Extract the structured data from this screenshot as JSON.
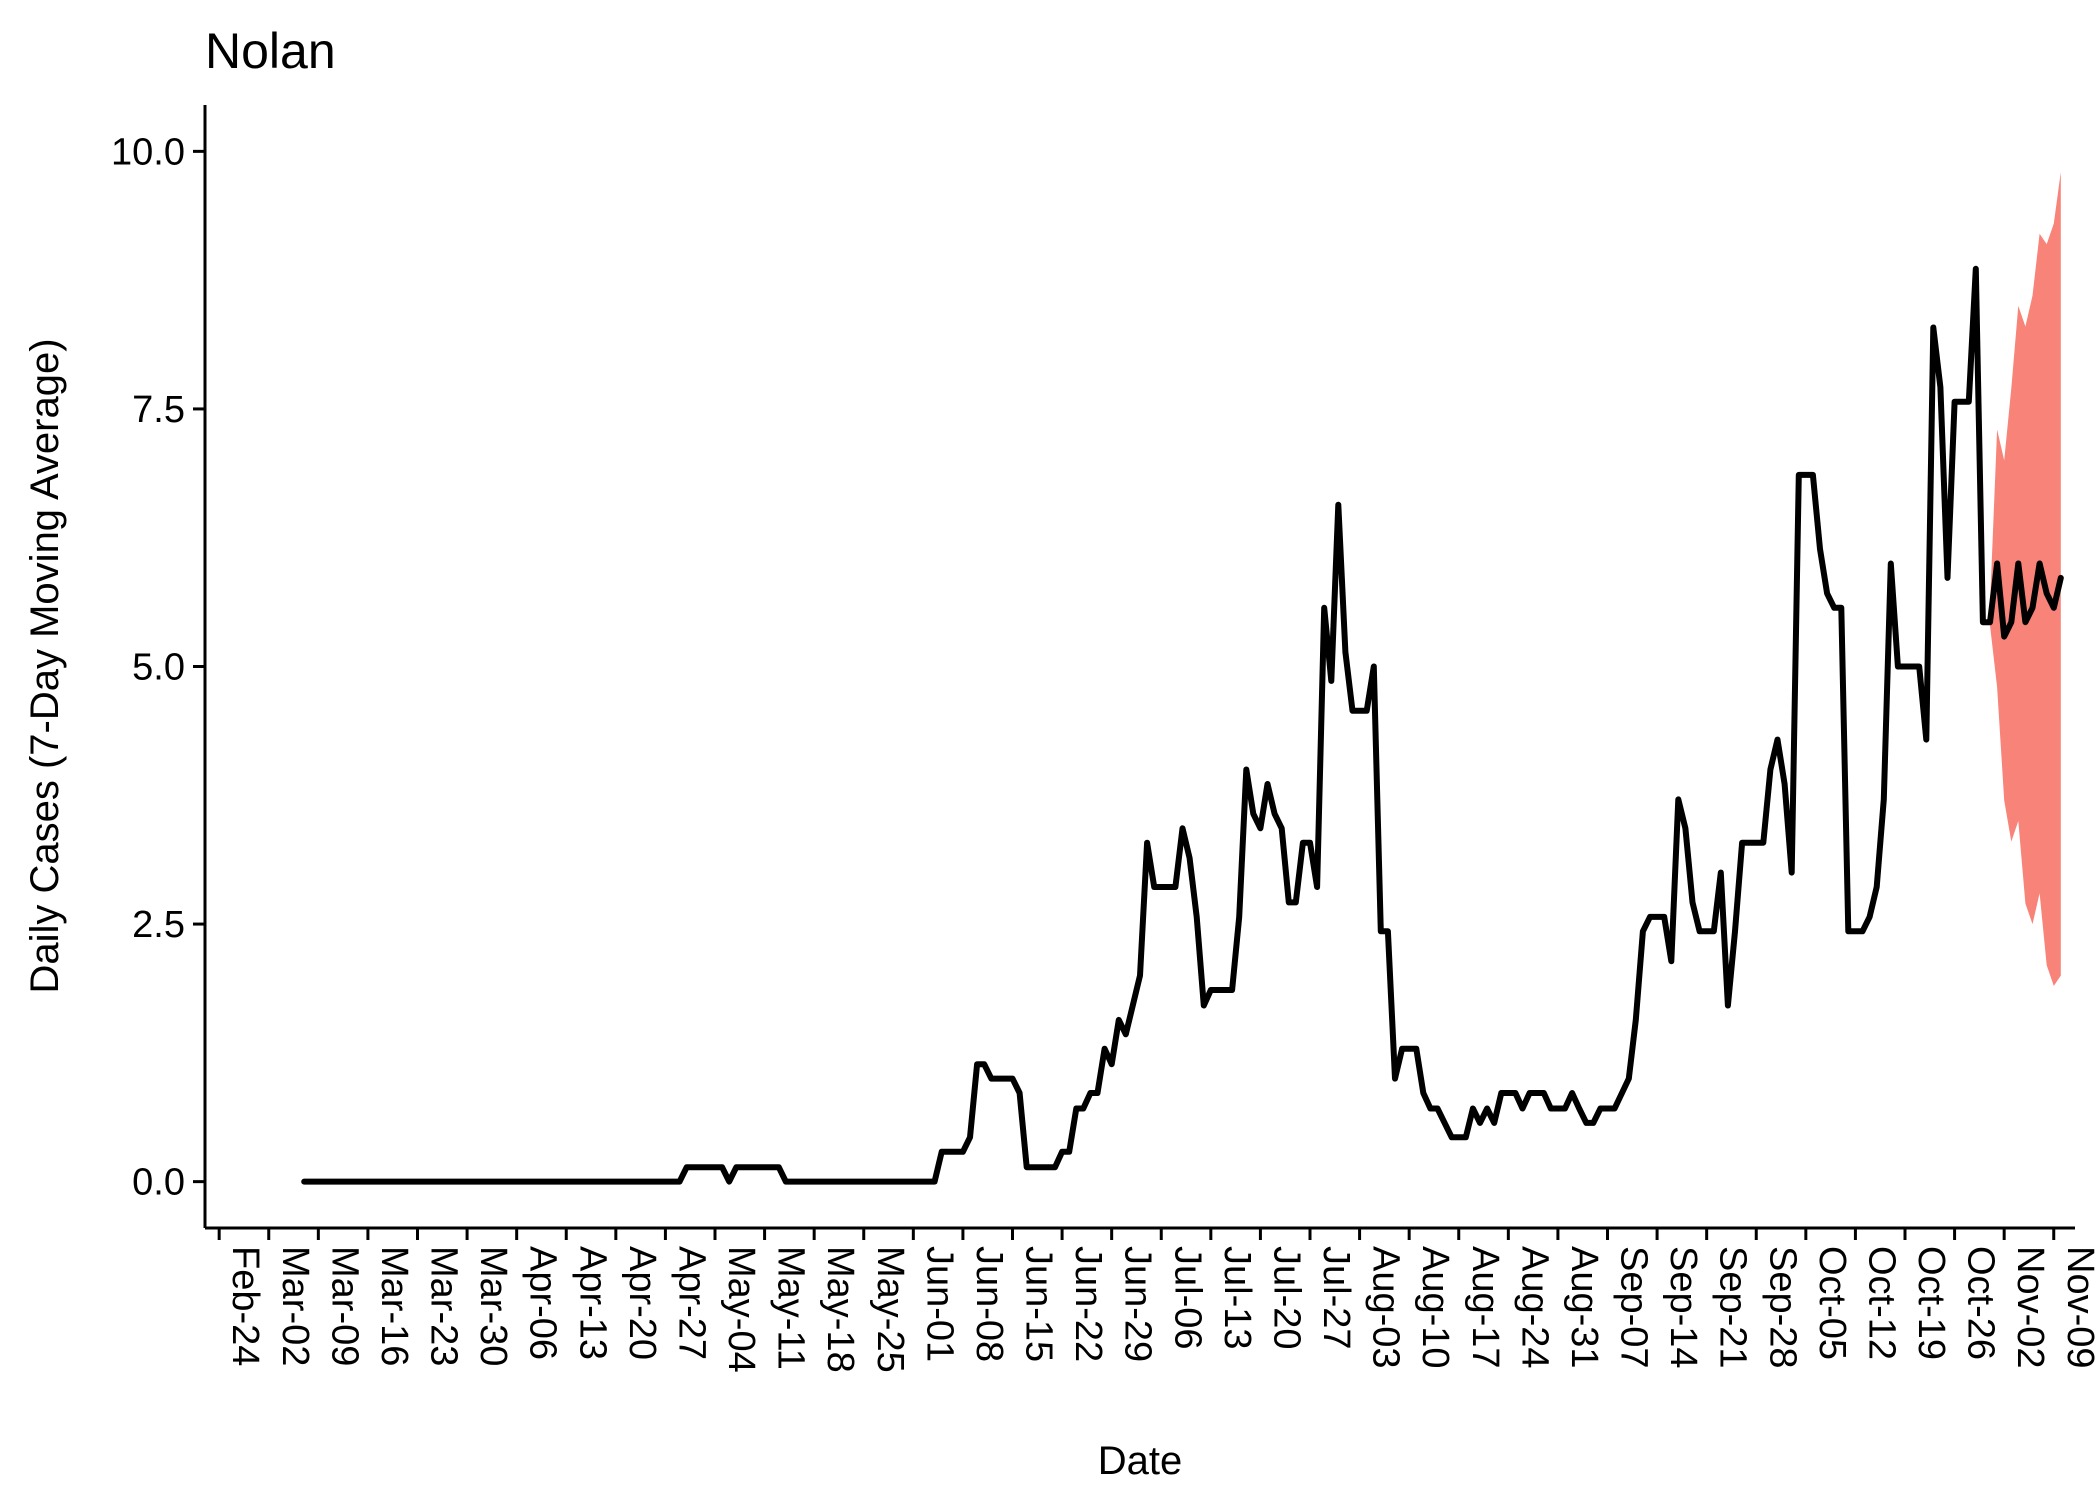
{
  "chart_data": {
    "type": "line",
    "title": "Nolan",
    "xlabel": "Date",
    "ylabel": "Daily Cases (7-Day Moving Average)",
    "ylim": [
      -0.45,
      10.45
    ],
    "y_ticks": [
      0.0,
      2.5,
      5.0,
      7.5,
      10.0
    ],
    "y_tick_labels": [
      "0.0",
      "2.5",
      "5.0",
      "7.5",
      "10.0"
    ],
    "x_start": "2020-02-22",
    "x_end": "2020-11-12",
    "x_ticks": [
      "2020-02-24",
      "2020-03-02",
      "2020-03-09",
      "2020-03-16",
      "2020-03-23",
      "2020-03-30",
      "2020-04-06",
      "2020-04-13",
      "2020-04-20",
      "2020-04-27",
      "2020-05-04",
      "2020-05-11",
      "2020-05-18",
      "2020-05-25",
      "2020-06-01",
      "2020-06-08",
      "2020-06-15",
      "2020-06-22",
      "2020-06-29",
      "2020-07-06",
      "2020-07-13",
      "2020-07-20",
      "2020-07-27",
      "2020-08-03",
      "2020-08-10",
      "2020-08-17",
      "2020-08-24",
      "2020-08-31",
      "2020-09-07",
      "2020-09-14",
      "2020-09-21",
      "2020-09-28",
      "2020-10-05",
      "2020-10-12",
      "2020-10-19",
      "2020-10-26",
      "2020-11-02",
      "2020-11-09"
    ],
    "x_tick_labels": [
      "Feb-24",
      "Mar-02",
      "Mar-09",
      "Mar-16",
      "Mar-23",
      "Mar-30",
      "Apr-06",
      "Apr-13",
      "Apr-20",
      "Apr-27",
      "May-04",
      "May-11",
      "May-18",
      "May-25",
      "Jun-01",
      "Jun-08",
      "Jun-15",
      "Jun-22",
      "Jun-29",
      "Jul-06",
      "Jul-13",
      "Jul-20",
      "Jul-27",
      "Aug-03",
      "Aug-10",
      "Aug-17",
      "Aug-24",
      "Aug-31",
      "Sep-07",
      "Sep-14",
      "Sep-21",
      "Sep-28",
      "Oct-05",
      "Oct-12",
      "Oct-19",
      "Oct-26",
      "Nov-02",
      "Nov-09"
    ],
    "grid": false,
    "legend": "none",
    "series": [
      {
        "color": "#000000",
        "points": [
          [
            "2020-03-07",
            0.0
          ],
          [
            "2020-04-29",
            0.0
          ],
          [
            "2020-04-30",
            0.14
          ],
          [
            "2020-05-05",
            0.14
          ],
          [
            "2020-05-06",
            0.0
          ],
          [
            "2020-05-07",
            0.14
          ],
          [
            "2020-05-13",
            0.14
          ],
          [
            "2020-05-14",
            0.0
          ],
          [
            "2020-06-04",
            0.0
          ],
          [
            "2020-06-05",
            0.29
          ],
          [
            "2020-06-08",
            0.29
          ],
          [
            "2020-06-09",
            0.43
          ],
          [
            "2020-06-10",
            1.14
          ],
          [
            "2020-06-11",
            1.14
          ],
          [
            "2020-06-12",
            1.0
          ],
          [
            "2020-06-15",
            1.0
          ],
          [
            "2020-06-16",
            0.86
          ],
          [
            "2020-06-17",
            0.14
          ],
          [
            "2020-06-21",
            0.14
          ],
          [
            "2020-06-22",
            0.29
          ],
          [
            "2020-06-23",
            0.29
          ],
          [
            "2020-06-24",
            0.71
          ],
          [
            "2020-06-25",
            0.71
          ],
          [
            "2020-06-26",
            0.86
          ],
          [
            "2020-06-27",
            0.86
          ],
          [
            "2020-06-28",
            1.29
          ],
          [
            "2020-06-29",
            1.14
          ],
          [
            "2020-06-30",
            1.57
          ],
          [
            "2020-07-01",
            1.43
          ],
          [
            "2020-07-03",
            2.0
          ],
          [
            "2020-07-04",
            3.29
          ],
          [
            "2020-07-05",
            2.86
          ],
          [
            "2020-07-08",
            2.86
          ],
          [
            "2020-07-09",
            3.43
          ],
          [
            "2020-07-10",
            3.14
          ],
          [
            "2020-07-11",
            2.57
          ],
          [
            "2020-07-12",
            1.71
          ],
          [
            "2020-07-13",
            1.86
          ],
          [
            "2020-07-16",
            1.86
          ],
          [
            "2020-07-17",
            2.57
          ],
          [
            "2020-07-18",
            4.0
          ],
          [
            "2020-07-19",
            3.57
          ],
          [
            "2020-07-20",
            3.43
          ],
          [
            "2020-07-21",
            3.86
          ],
          [
            "2020-07-22",
            3.57
          ],
          [
            "2020-07-23",
            3.43
          ],
          [
            "2020-07-24",
            2.71
          ],
          [
            "2020-07-25",
            2.71
          ],
          [
            "2020-07-26",
            3.29
          ],
          [
            "2020-07-27",
            3.29
          ],
          [
            "2020-07-28",
            2.86
          ],
          [
            "2020-07-29",
            5.57
          ],
          [
            "2020-07-30",
            4.86
          ],
          [
            "2020-07-31",
            6.57
          ],
          [
            "2020-08-01",
            5.14
          ],
          [
            "2020-08-02",
            4.57
          ],
          [
            "2020-08-04",
            4.57
          ],
          [
            "2020-08-05",
            5.0
          ],
          [
            "2020-08-06",
            2.43
          ],
          [
            "2020-08-07",
            2.43
          ],
          [
            "2020-08-08",
            1.0
          ],
          [
            "2020-08-09",
            1.29
          ],
          [
            "2020-08-11",
            1.29
          ],
          [
            "2020-08-12",
            0.86
          ],
          [
            "2020-08-13",
            0.71
          ],
          [
            "2020-08-14",
            0.71
          ],
          [
            "2020-08-15",
            0.57
          ],
          [
            "2020-08-16",
            0.43
          ],
          [
            "2020-08-18",
            0.43
          ],
          [
            "2020-08-19",
            0.71
          ],
          [
            "2020-08-20",
            0.57
          ],
          [
            "2020-08-21",
            0.71
          ],
          [
            "2020-08-22",
            0.57
          ],
          [
            "2020-08-23",
            0.86
          ],
          [
            "2020-08-25",
            0.86
          ],
          [
            "2020-08-26",
            0.71
          ],
          [
            "2020-08-27",
            0.86
          ],
          [
            "2020-08-29",
            0.86
          ],
          [
            "2020-08-30",
            0.71
          ],
          [
            "2020-09-01",
            0.71
          ],
          [
            "2020-09-02",
            0.86
          ],
          [
            "2020-09-03",
            0.71
          ],
          [
            "2020-09-04",
            0.57
          ],
          [
            "2020-09-05",
            0.57
          ],
          [
            "2020-09-06",
            0.71
          ],
          [
            "2020-09-08",
            0.71
          ],
          [
            "2020-09-10",
            1.0
          ],
          [
            "2020-09-11",
            1.57
          ],
          [
            "2020-09-12",
            2.43
          ],
          [
            "2020-09-13",
            2.57
          ],
          [
            "2020-09-15",
            2.57
          ],
          [
            "2020-09-16",
            2.14
          ],
          [
            "2020-09-17",
            3.71
          ],
          [
            "2020-09-18",
            3.43
          ],
          [
            "2020-09-19",
            2.71
          ],
          [
            "2020-09-20",
            2.43
          ],
          [
            "2020-09-22",
            2.43
          ],
          [
            "2020-09-23",
            3.0
          ],
          [
            "2020-09-24",
            1.71
          ],
          [
            "2020-09-25",
            2.43
          ],
          [
            "2020-09-26",
            3.29
          ],
          [
            "2020-09-29",
            3.29
          ],
          [
            "2020-09-30",
            4.0
          ],
          [
            "2020-10-01",
            4.29
          ],
          [
            "2020-10-02",
            3.86
          ],
          [
            "2020-10-03",
            3.0
          ],
          [
            "2020-10-04",
            6.86
          ],
          [
            "2020-10-06",
            6.86
          ],
          [
            "2020-10-07",
            6.14
          ],
          [
            "2020-10-08",
            5.71
          ],
          [
            "2020-10-09",
            5.57
          ],
          [
            "2020-10-10",
            5.57
          ],
          [
            "2020-10-11",
            2.43
          ],
          [
            "2020-10-13",
            2.43
          ],
          [
            "2020-10-14",
            2.57
          ],
          [
            "2020-10-15",
            2.86
          ],
          [
            "2020-10-16",
            3.71
          ],
          [
            "2020-10-17",
            6.0
          ],
          [
            "2020-10-18",
            5.0
          ],
          [
            "2020-10-21",
            5.0
          ],
          [
            "2020-10-22",
            4.29
          ],
          [
            "2020-10-23",
            8.29
          ],
          [
            "2020-10-24",
            7.71
          ],
          [
            "2020-10-25",
            5.86
          ],
          [
            "2020-10-26",
            7.57
          ],
          [
            "2020-10-28",
            7.57
          ],
          [
            "2020-10-29",
            8.86
          ],
          [
            "2020-10-30",
            5.43
          ],
          [
            "2020-10-31",
            5.43
          ],
          [
            "2020-11-01",
            6.0
          ],
          [
            "2020-11-02",
            5.29
          ],
          [
            "2020-11-03",
            5.43
          ],
          [
            "2020-11-04",
            6.0
          ],
          [
            "2020-11-05",
            5.43
          ],
          [
            "2020-11-06",
            5.57
          ],
          [
            "2020-11-07",
            6.0
          ],
          [
            "2020-11-08",
            5.71
          ],
          [
            "2020-11-09",
            5.57
          ],
          [
            "2020-11-10",
            5.86
          ]
        ]
      }
    ],
    "bands": [
      {
        "color": "#f88379",
        "upper": [
          [
            "2020-10-31",
            5.6
          ],
          [
            "2020-11-01",
            7.3
          ],
          [
            "2020-11-02",
            7.0
          ],
          [
            "2020-11-03",
            7.7
          ],
          [
            "2020-11-04",
            8.5
          ],
          [
            "2020-11-05",
            8.3
          ],
          [
            "2020-11-06",
            8.6
          ],
          [
            "2020-11-07",
            9.2
          ],
          [
            "2020-11-08",
            9.1
          ],
          [
            "2020-11-09",
            9.3
          ],
          [
            "2020-11-10",
            9.8
          ]
        ],
        "lower": [
          [
            "2020-10-31",
            5.4
          ],
          [
            "2020-11-01",
            4.8
          ],
          [
            "2020-11-02",
            3.7
          ],
          [
            "2020-11-03",
            3.3
          ],
          [
            "2020-11-04",
            3.5
          ],
          [
            "2020-11-05",
            2.7
          ],
          [
            "2020-11-06",
            2.5
          ],
          [
            "2020-11-07",
            2.8
          ],
          [
            "2020-11-08",
            2.1
          ],
          [
            "2020-11-09",
            1.9
          ],
          [
            "2020-11-10",
            2.0
          ]
        ]
      }
    ]
  }
}
